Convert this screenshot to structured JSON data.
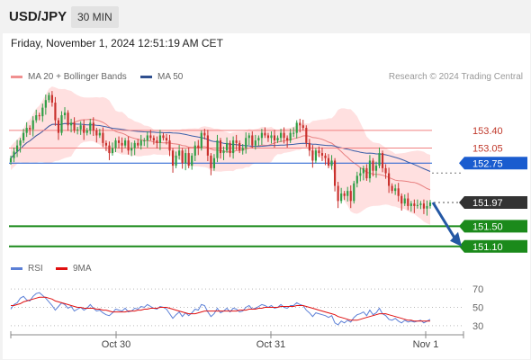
{
  "header": {
    "symbol": "USD/JPY",
    "timeframe": "30 MIN",
    "datetime": "Friday, November 1, 2024 12:51:19 AM CET"
  },
  "legend": {
    "ma20_label": "MA 20 + Bollinger Bands",
    "ma50_label": "MA 50",
    "credit": "Research © 2024 Trading Central",
    "rsi_label": "RSI",
    "ma9_label": "9MA"
  },
  "colors": {
    "bull": "#2e9e45",
    "bear": "#c9302c",
    "band_fill": "#ffe0e0",
    "ma20": "#e88080",
    "ma50": "#3a5ea8",
    "resistance": "#f08080",
    "pivot": "#1a5ccf",
    "support": "#1b8a1b",
    "last": "#333333",
    "arrow": "#2458a4",
    "rsi": "#5b7fd6",
    "rsi_ma": "#e01010"
  },
  "chart_data": [
    {
      "type": "candlestick",
      "title": "USD/JPY",
      "timeframe": "30 MIN",
      "x_ticks": [
        "Oct 30",
        "Oct 31",
        "Nov 1"
      ],
      "ylim": [
        150.9,
        154.2
      ],
      "series": [
        {
          "name": "Price",
          "close": [
            152.85,
            152.98,
            153.1,
            153.2,
            153.35,
            153.45,
            153.42,
            153.6,
            153.7,
            153.68,
            153.85,
            154.0,
            154.1,
            153.95,
            153.6,
            153.35,
            153.7,
            153.75,
            153.5,
            153.55,
            153.4,
            153.42,
            153.5,
            153.35,
            153.4,
            153.55,
            153.4,
            153.3,
            153.35,
            153.15,
            153.1,
            152.95,
            153.05,
            153.2,
            153.15,
            153.1,
            153.2,
            153.0,
            153.05,
            153.15,
            153.1,
            153.2,
            153.2,
            153.3,
            153.25,
            153.2,
            153.15,
            153.3,
            153.25,
            153.2,
            153.0,
            152.7,
            152.9,
            153.0,
            152.75,
            152.95,
            152.7,
            152.9,
            153.1,
            153.05,
            153.35,
            153.3,
            152.9,
            152.65,
            152.85,
            153.2,
            152.95,
            153.0,
            153.15,
            152.95,
            153.2,
            153.15,
            153.0,
            153.05,
            153.25,
            153.3,
            153.1,
            153.2,
            153.25,
            153.35,
            153.3,
            153.25,
            153.3,
            153.2,
            153.25,
            153.35,
            153.25,
            153.2,
            153.35,
            153.35,
            153.55,
            153.5,
            153.45,
            153.15,
            153.0,
            152.8,
            153.0,
            152.95,
            152.9,
            152.85,
            152.7,
            152.8,
            152.3,
            152.0,
            152.15,
            152.1,
            152.2,
            152.0,
            152.35,
            152.5,
            152.55,
            152.65,
            152.45,
            152.8,
            152.6,
            152.7,
            152.95,
            152.65,
            152.55,
            152.3,
            152.2,
            152.25,
            152.1,
            151.95,
            152.05,
            151.9,
            151.95,
            151.9,
            151.92,
            151.95,
            151.85,
            151.9,
            151.97
          ]
        }
      ],
      "overlays": [
        {
          "name": "MA 20 + Bollinger Bands"
        },
        {
          "name": "MA 50"
        }
      ],
      "levels": [
        {
          "value": 153.4,
          "label": "153.40",
          "role": "resistance"
        },
        {
          "value": 153.05,
          "label": "153.05",
          "role": "resistance"
        },
        {
          "value": 152.75,
          "label": "152.75",
          "role": "pivot"
        },
        {
          "value": 151.97,
          "label": "151.97",
          "role": "last"
        },
        {
          "value": 151.5,
          "label": "151.50",
          "role": "support"
        },
        {
          "value": 151.1,
          "label": "151.10",
          "role": "support"
        }
      ],
      "forecast": {
        "from": 151.97,
        "to": 151.1,
        "direction": "down"
      }
    },
    {
      "type": "line",
      "title": "RSI",
      "ylim": [
        25,
        75
      ],
      "y_ticks": [
        70,
        50,
        30
      ],
      "series": [
        {
          "name": "RSI",
          "values": [
            48,
            53,
            55,
            60,
            62,
            58,
            57,
            62,
            65,
            66,
            63,
            60,
            56,
            52,
            47,
            51,
            55,
            53,
            49,
            51,
            46,
            48,
            50,
            47,
            49,
            53,
            49,
            46,
            47,
            44,
            42,
            41,
            44,
            48,
            47,
            46,
            49,
            45,
            46,
            49,
            48,
            51,
            50,
            53,
            51,
            49,
            48,
            51,
            50,
            48,
            43,
            38,
            42,
            45,
            40,
            44,
            41,
            44,
            48,
            47,
            53,
            52,
            45,
            40,
            43,
            49,
            44,
            46,
            49,
            45,
            49,
            48,
            45,
            46,
            50,
            52,
            48,
            49,
            51,
            53,
            52,
            50,
            52,
            49,
            50,
            53,
            50,
            49,
            52,
            52,
            55,
            53,
            52,
            47,
            44,
            40,
            44,
            43,
            42,
            41,
            39,
            41,
            33,
            31,
            35,
            33,
            36,
            34,
            39,
            42,
            43,
            45,
            41,
            47,
            42,
            44,
            49,
            43,
            41,
            37,
            36,
            38,
            35,
            33,
            36,
            34,
            35,
            34,
            35,
            36,
            33,
            35,
            37
          ]
        },
        {
          "name": "9MA",
          "values": [
            52,
            52,
            53,
            54,
            56,
            57,
            58,
            59,
            60,
            61,
            61,
            61,
            60,
            59,
            57,
            56,
            55,
            54,
            53,
            52,
            51,
            50,
            50,
            49,
            49,
            49,
            49,
            48,
            48,
            47,
            47,
            46,
            45,
            45,
            45,
            45,
            45,
            46,
            46,
            46,
            47,
            47,
            48,
            48,
            49,
            49,
            49,
            50,
            50,
            50,
            49,
            48,
            47,
            46,
            45,
            44,
            43,
            43,
            43,
            44,
            45,
            46,
            46,
            46,
            46,
            46,
            46,
            46,
            46,
            46,
            46,
            46,
            47,
            47,
            47,
            48,
            48,
            48,
            49,
            49,
            50,
            50,
            50,
            50,
            50,
            51,
            51,
            51,
            51,
            51,
            52,
            52,
            52,
            51,
            50,
            49,
            48,
            47,
            46,
            45,
            44,
            43,
            42,
            40,
            39,
            38,
            37,
            36,
            36,
            36,
            37,
            38,
            39,
            40,
            41,
            42,
            43,
            43,
            43,
            42,
            41,
            40,
            39,
            38,
            37,
            36,
            36,
            35,
            35,
            35,
            35,
            35,
            35
          ]
        }
      ]
    }
  ]
}
